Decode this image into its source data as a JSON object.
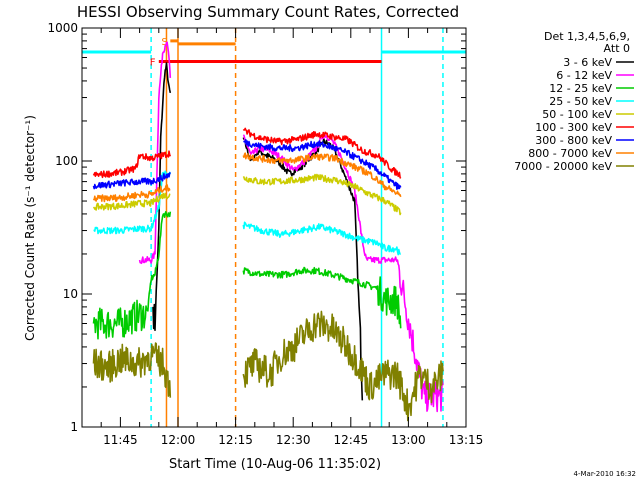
{
  "chart_data": {
    "type": "line",
    "title": "HESSI Observing Summary Count Rates, Corrected",
    "xlabel": "Start Time (10-Aug-06 11:35:02)",
    "ylabel": "Corrected Count Rate (s⁻¹ detector⁻¹)",
    "xlim": [
      "11:35",
      "13:15"
    ],
    "ylim": [
      1,
      1000
    ],
    "yscale": "log",
    "x_ticks": [
      "11:45",
      "12:00",
      "12:15",
      "12:30",
      "12:45",
      "13:00",
      "13:15"
    ],
    "y_ticks": [
      "1",
      "10",
      "100",
      "1000"
    ],
    "grid": false,
    "legend_position": "top-right",
    "legend_header": [
      "Det 1,3,4,5,6,9,",
      "Att 0"
    ],
    "footer_date": "4-Mar-2010 16:32",
    "series": [
      {
        "name": "3 - 6 keV",
        "color": "#000000",
        "points": [
          [
            "11:53:30",
            8
          ],
          [
            "11:54:00",
            6
          ],
          [
            "11:55:00",
            30
          ],
          [
            "11:55:30",
            150
          ],
          [
            "11:56:30",
            450
          ],
          [
            "11:57:00",
            520
          ],
          [
            "11:57:40",
            350
          ],
          [
            "11:58:00",
            320
          ],
          [
            "12:17:00",
            150
          ],
          [
            "12:19:00",
            100
          ],
          [
            "12:21:00",
            120
          ],
          [
            "12:23:00",
            110
          ],
          [
            "12:26:00",
            100
          ],
          [
            "12:29:00",
            80
          ],
          [
            "12:32:00",
            90
          ],
          [
            "12:35:00",
            110
          ],
          [
            "12:38:00",
            140
          ],
          [
            "12:40:00",
            130
          ],
          [
            "12:42:00",
            100
          ],
          [
            "12:44:00",
            70
          ],
          [
            "12:46:00",
            50
          ],
          [
            "12:47:00",
            10
          ],
          [
            "12:48:00",
            2
          ]
        ]
      },
      {
        "name": "6 - 12 keV",
        "color": "#ff00ff",
        "points": [
          [
            "11:50:00",
            18
          ],
          [
            "11:53:00",
            18
          ],
          [
            "11:54:00",
            20
          ],
          [
            "11:55:00",
            300
          ],
          [
            "11:56:00",
            650
          ],
          [
            "11:57:00",
            800
          ],
          [
            "11:57:40",
            600
          ],
          [
            "11:58:00",
            400
          ],
          [
            "12:17:00",
            155
          ],
          [
            "12:19:00",
            110
          ],
          [
            "12:21:00",
            125
          ],
          [
            "12:24:00",
            120
          ],
          [
            "12:27:00",
            105
          ],
          [
            "12:30:00",
            85
          ],
          [
            "12:33:00",
            100
          ],
          [
            "12:36:00",
            125
          ],
          [
            "12:38:00",
            160
          ],
          [
            "12:40:00",
            145
          ],
          [
            "12:42:00",
            115
          ],
          [
            "12:44:00",
            85
          ],
          [
            "12:46:00",
            60
          ],
          [
            "12:47:00",
            40
          ],
          [
            "12:48:00",
            25
          ],
          [
            "12:49:00",
            18
          ],
          [
            "12:54:00",
            18
          ],
          [
            "12:57:00",
            18
          ],
          [
            "13:04:00",
            1.7
          ],
          [
            "13:09:00",
            1.7
          ]
        ]
      },
      {
        "name": "12 - 25 keV",
        "color": "#00cc00",
        "points": [
          [
            "11:38:00",
            6
          ],
          [
            "11:45:00",
            6
          ],
          [
            "11:50:00",
            7
          ],
          [
            "11:52:00",
            7
          ],
          [
            "11:53:00",
            13
          ],
          [
            "11:54:00",
            14
          ],
          [
            "11:55:00",
            20
          ],
          [
            "11:56:00",
            40
          ],
          [
            "11:58:00",
            40
          ],
          [
            "12:17:00",
            15
          ],
          [
            "12:22:00",
            14
          ],
          [
            "12:28:00",
            14
          ],
          [
            "12:32:00",
            15
          ],
          [
            "12:36:00",
            15
          ],
          [
            "12:40:00",
            14
          ],
          [
            "12:44:00",
            13
          ],
          [
            "12:48:00",
            12
          ],
          [
            "12:52:00",
            11
          ],
          [
            "12:54:00",
            9
          ],
          [
            "12:57:00",
            9
          ],
          [
            "12:58:00",
            6
          ],
          [
            "13:09:00",
            6
          ]
        ]
      },
      {
        "name": "25 - 50 keV",
        "color": "#00ffff",
        "points": [
          [
            "11:38:00",
            30
          ],
          [
            "11:45:00",
            30
          ],
          [
            "11:50:00",
            31
          ],
          [
            "11:53:00",
            31
          ],
          [
            "11:55:00",
            45
          ],
          [
            "11:56:00",
            80
          ],
          [
            "11:58:00",
            80
          ],
          [
            "12:17:00",
            33
          ],
          [
            "12:22:00",
            30
          ],
          [
            "12:27:00",
            28
          ],
          [
            "12:32:00",
            30
          ],
          [
            "12:37:00",
            32
          ],
          [
            "12:42:00",
            29
          ],
          [
            "12:47:00",
            26
          ],
          [
            "12:52:00",
            24
          ],
          [
            "12:54:00",
            22
          ],
          [
            "12:57:00",
            22
          ],
          [
            "12:58:00",
            19
          ],
          [
            "13:09:00",
            19
          ]
        ]
      },
      {
        "name": "50 - 100 keV",
        "color": "#cccc00",
        "points": [
          [
            "11:38:00",
            45
          ],
          [
            "11:45:00",
            46
          ],
          [
            "11:50:00",
            48
          ],
          [
            "11:53:00",
            48
          ],
          [
            "11:56:00",
            55
          ],
          [
            "11:58:00",
            55
          ],
          [
            "12:17:00",
            75
          ],
          [
            "12:21:00",
            70
          ],
          [
            "12:26:00",
            70
          ],
          [
            "12:31:00",
            72
          ],
          [
            "12:36:00",
            75
          ],
          [
            "12:41:00",
            72
          ],
          [
            "12:46:00",
            64
          ],
          [
            "12:50:00",
            56
          ],
          [
            "12:54:00",
            50
          ],
          [
            "12:58:00",
            41
          ],
          [
            "13:09:00",
            43
          ]
        ]
      },
      {
        "name": "100 - 300 keV",
        "color": "#ff0000",
        "points": [
          [
            "11:38:00",
            78
          ],
          [
            "11:45:00",
            82
          ],
          [
            "11:49:00",
            88
          ],
          [
            "11:50:00",
            110
          ],
          [
            "11:53:00",
            105
          ],
          [
            "11:56:00",
            110
          ],
          [
            "11:58:00",
            115
          ],
          [
            "12:17:00",
            170
          ],
          [
            "12:21:00",
            150
          ],
          [
            "12:26:00",
            140
          ],
          [
            "12:31:00",
            145
          ],
          [
            "12:36:00",
            160
          ],
          [
            "12:39:00",
            155
          ],
          [
            "12:44:00",
            145
          ],
          [
            "12:48:00",
            120
          ],
          [
            "12:52:00",
            110
          ],
          [
            "12:56:00",
            85
          ],
          [
            "12:58:00",
            78
          ],
          [
            "13:09:00",
            78
          ]
        ]
      },
      {
        "name": "300 - 800 keV",
        "color": "#0000ff",
        "points": [
          [
            "11:38:00",
            65
          ],
          [
            "11:45:00",
            68
          ],
          [
            "11:50:00",
            70
          ],
          [
            "11:53:00",
            70
          ],
          [
            "11:56:00",
            75
          ],
          [
            "11:58:00",
            80
          ],
          [
            "12:17:00",
            140
          ],
          [
            "12:21:00",
            130
          ],
          [
            "12:26:00",
            125
          ],
          [
            "12:31:00",
            125
          ],
          [
            "12:36:00",
            135
          ],
          [
            "12:39:00",
            130
          ],
          [
            "12:44:00",
            115
          ],
          [
            "12:48:00",
            100
          ],
          [
            "12:52:00",
            85
          ],
          [
            "12:56:00",
            68
          ],
          [
            "12:58:00",
            62
          ],
          [
            "13:09:00",
            62
          ]
        ]
      },
      {
        "name": "800 - 7000 keV",
        "color": "#ff8000",
        "points": [
          [
            "11:38:00",
            52
          ],
          [
            "11:45:00",
            53
          ],
          [
            "11:50:00",
            56
          ],
          [
            "11:53:00",
            56
          ],
          [
            "11:56:00",
            62
          ],
          [
            "11:58:00",
            63
          ],
          [
            "12:17:00",
            110
          ],
          [
            "12:21:00",
            105
          ],
          [
            "12:26:00",
            100
          ],
          [
            "12:31:00",
            102
          ],
          [
            "12:36:00",
            108
          ],
          [
            "12:41:00",
            105
          ],
          [
            "12:46:00",
            90
          ],
          [
            "12:50:00",
            80
          ],
          [
            "12:54:00",
            64
          ],
          [
            "12:58:00",
            55
          ],
          [
            "13:09:00",
            56
          ]
        ]
      },
      {
        "name": "7000 - 20000 keV",
        "color": "#808000",
        "points": [
          [
            "11:38:00",
            3
          ],
          [
            "11:42:00",
            2.8
          ],
          [
            "11:45:00",
            3.2
          ],
          [
            "11:50:00",
            3
          ],
          [
            "11:53:00",
            3.5
          ],
          [
            "11:56:00",
            3
          ],
          [
            "11:58:00",
            2
          ],
          [
            "12:17:00",
            2.5
          ],
          [
            "12:20:00",
            3
          ],
          [
            "12:24:00",
            2.5
          ],
          [
            "12:27:00",
            3.5
          ],
          [
            "12:30:00",
            4
          ],
          [
            "12:33:00",
            5
          ],
          [
            "12:36:00",
            6
          ],
          [
            "12:40:00",
            5.5
          ],
          [
            "12:44:00",
            4
          ],
          [
            "12:47:00",
            3
          ],
          [
            "12:50:00",
            2
          ],
          [
            "12:54:00",
            2.5
          ],
          [
            "12:57:00",
            2.5
          ],
          [
            "13:00:00",
            1.4
          ],
          [
            "13:03:00",
            2.5
          ],
          [
            "13:06:00",
            2
          ],
          [
            "13:09:00",
            2.5
          ]
        ]
      }
    ],
    "annotations": [
      {
        "label": "S",
        "color": "#ff8000",
        "value": 800,
        "from": "11:58",
        "to": "12:00"
      },
      {
        "label": "F",
        "color": "#ff0000",
        "value": 560,
        "from": "11:55",
        "to": "12:53"
      },
      {
        "label": "",
        "color": "#ff8000",
        "value": 760,
        "from": "12:00",
        "to": "12:15"
      },
      {
        "label": "",
        "color": "#00ffff",
        "value": 660,
        "from": "11:35",
        "to": "11:53"
      },
      {
        "label": "",
        "color": "#00ffff",
        "value": 660,
        "from": "12:53",
        "to": "13:15"
      }
    ],
    "markers": [
      {
        "time": "11:53",
        "color": "#00ffff",
        "style": "dashed"
      },
      {
        "time": "11:57",
        "color": "#ff8000",
        "style": "solid"
      },
      {
        "time": "12:00",
        "color": "#ff8000",
        "style": "solid"
      },
      {
        "time": "12:15",
        "color": "#ff8000",
        "style": "dashed"
      },
      {
        "time": "12:53",
        "color": "#00ffff",
        "style": "solid"
      },
      {
        "time": "13:09",
        "color": "#00ffff",
        "style": "dashed"
      }
    ]
  }
}
